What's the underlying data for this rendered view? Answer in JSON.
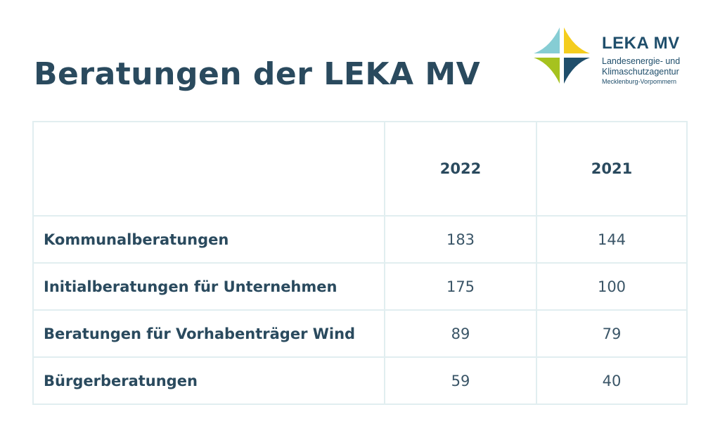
{
  "page": {
    "title": "Beratungen der LEKA MV"
  },
  "logo": {
    "brand": "LEKA MV",
    "line1": "Landesenergie- und",
    "line2": "Klimaschutzagentur",
    "line3": "Mecklenburg-Vorpommern",
    "colors": {
      "light_blue": "#86cdd4",
      "yellow": "#f4cd1e",
      "green": "#a6c21f",
      "dark_blue": "#1f4e6b"
    }
  },
  "table": {
    "columns": [
      "",
      "2022",
      "2021"
    ],
    "rows": [
      {
        "label": "Kommunalberatungen",
        "values": [
          "183",
          "144"
        ]
      },
      {
        "label": "Initialberatungen für Unternehmen",
        "values": [
          "175",
          "100"
        ]
      },
      {
        "label": "Beratungen für Vorhabenträger Wind",
        "values": [
          "89",
          "79"
        ]
      },
      {
        "label": "Bürgerberatungen",
        "values": [
          "59",
          "40"
        ]
      }
    ]
  },
  "colors": {
    "text": "#2a4a5e",
    "grid": "#e1eef0",
    "background": "#ffffff"
  }
}
